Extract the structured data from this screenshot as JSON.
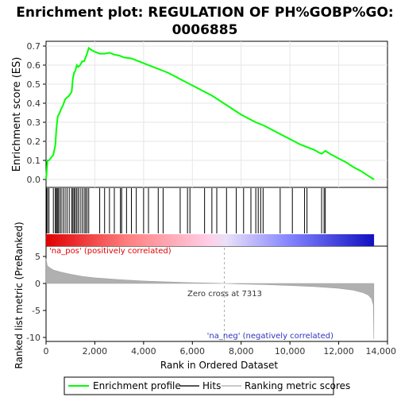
{
  "chart_data": {
    "type": "line",
    "title": "Enrichment plot: REGULATION OF PH%GOBP%GO:0006885",
    "title_lines": [
      "Enrichment plot: REGULATION OF PH%GOBP%GO:",
      "0006885"
    ],
    "xlabel": "Rank in Ordered Dataset",
    "ylabel_top": "Enrichment score (ES)",
    "ylabel_bottom": "Ranked list metric (PreRanked)",
    "xlim": [
      0,
      14000
    ],
    "es_ylim": [
      0,
      0.7
    ],
    "metric_ylim": [
      -10,
      5
    ],
    "x_ticks": [
      "0",
      "2,000",
      "4,000",
      "6,000",
      "8,000",
      "10,000",
      "12,000",
      "14,000"
    ],
    "x_tick_values": [
      0,
      2000,
      4000,
      6000,
      8000,
      10000,
      12000,
      14000
    ],
    "es_ticks": [
      "0.0",
      "0.1",
      "0.2",
      "0.3",
      "0.4",
      "0.5",
      "0.6",
      "0.7"
    ],
    "es_tick_values": [
      0,
      0.1,
      0.2,
      0.3,
      0.4,
      0.5,
      0.6,
      0.7
    ],
    "metric_ticks": [
      "5",
      "0",
      "-5",
      "-10"
    ],
    "metric_tick_values": [
      5,
      0,
      -5,
      -10
    ],
    "series": [
      {
        "name": "Enrichment profile",
        "color": "#00ff00",
        "x": [
          0,
          60,
          120,
          300,
          380,
          420,
          480,
          560,
          620,
          700,
          780,
          860,
          950,
          1050,
          1100,
          1150,
          1200,
          1260,
          1320,
          1400,
          1480,
          1560,
          1620,
          1680,
          1750,
          1850,
          2000,
          2200,
          2400,
          2600,
          2800,
          3000,
          3200,
          3500,
          3800,
          4100,
          4400,
          4700,
          5000,
          5300,
          5600,
          5900,
          6200,
          6500,
          6800,
          7100,
          7400,
          7700,
          8000,
          8300,
          8600,
          8900,
          9200,
          9500,
          9800,
          10100,
          10400,
          10700,
          11000,
          11200,
          11300,
          11450,
          11700,
          12000,
          12300,
          12600,
          12900,
          13200,
          13450
        ],
        "y": [
          0.0,
          0.1,
          0.1,
          0.13,
          0.18,
          0.26,
          0.33,
          0.35,
          0.37,
          0.39,
          0.42,
          0.43,
          0.44,
          0.46,
          0.53,
          0.56,
          0.57,
          0.6,
          0.59,
          0.6,
          0.62,
          0.62,
          0.64,
          0.66,
          0.69,
          0.68,
          0.67,
          0.66,
          0.66,
          0.665,
          0.655,
          0.65,
          0.64,
          0.635,
          0.62,
          0.605,
          0.59,
          0.575,
          0.56,
          0.54,
          0.52,
          0.5,
          0.48,
          0.46,
          0.44,
          0.415,
          0.39,
          0.365,
          0.34,
          0.32,
          0.3,
          0.285,
          0.265,
          0.245,
          0.225,
          0.205,
          0.185,
          0.17,
          0.155,
          0.14,
          0.135,
          0.15,
          0.13,
          0.11,
          0.09,
          0.065,
          0.045,
          0.02,
          0.0
        ]
      },
      {
        "name": "Hits",
        "color": "#000000",
        "hit_positions": [
          20,
          60,
          120,
          300,
          380,
          420,
          460,
          500,
          560,
          620,
          700,
          780,
          860,
          950,
          1050,
          1100,
          1150,
          1200,
          1260,
          1320,
          1400,
          1480,
          1560,
          1620,
          1680,
          1750,
          2200,
          2400,
          2600,
          2800,
          3050,
          3100,
          3300,
          3500,
          3700,
          4000,
          4200,
          4600,
          4800,
          5500,
          5800,
          5900,
          6500,
          6800,
          7000,
          7400,
          7800,
          8100,
          8400,
          8600,
          8700,
          8800,
          8900,
          9600,
          10100,
          10600,
          10700,
          11300,
          11400,
          11450
        ]
      },
      {
        "name": "Ranking metric scores",
        "color": "#c0c0c0",
        "x": [
          0,
          50,
          150,
          300,
          600,
          1000,
          1500,
          2000,
          3000,
          4000,
          5000,
          6000,
          7000,
          7313,
          8000,
          9000,
          10000,
          11000,
          12000,
          12600,
          13000,
          13200,
          13350,
          13420,
          13440
        ],
        "y": [
          4.6,
          3.3,
          2.9,
          2.5,
          2.1,
          1.7,
          1.3,
          1.05,
          0.7,
          0.45,
          0.28,
          0.15,
          0.05,
          0.0,
          -0.1,
          -0.22,
          -0.38,
          -0.58,
          -0.9,
          -1.25,
          -1.7,
          -2.1,
          -2.8,
          -4.0,
          -10.3
        ]
      }
    ],
    "color_bar": {
      "from_rank": 0,
      "to_rank": 13450,
      "stops": [
        "#e00000",
        "#ff8080",
        "#ffd0e8",
        "#e8e0f8",
        "#8080ff",
        "#1010c0"
      ],
      "stop_positions": [
        0,
        0.25,
        0.5,
        0.55,
        0.75,
        1
      ]
    },
    "zero_cross_rank": 7313,
    "annotations": {
      "pos_label": "'na_pos' (positively correlated)",
      "neg_label": "'na_neg' (negatively correlated)",
      "zero_cross": "Zero cross at 7313"
    },
    "legend": {
      "placement": "bottom",
      "items": [
        "Enrichment profile",
        "Hits",
        "Ranking metric scores"
      ]
    },
    "colors": {
      "es_line": "#00ff00",
      "pos_text": "#e00000",
      "neg_text": "#3030c0",
      "metric_fill": "#b0b0b0"
    }
  }
}
